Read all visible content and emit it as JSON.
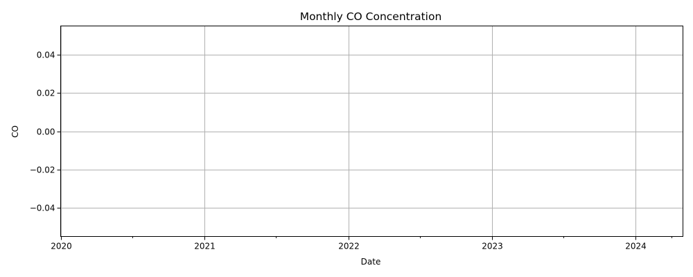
{
  "chart_data": {
    "type": "line",
    "title": "Monthly CO Concentration",
    "xlabel": "Date",
    "ylabel": "CO",
    "xlim": [
      "2020-01-01",
      "2024-04-30"
    ],
    "ylim": [
      -0.055,
      0.055
    ],
    "x_major_ticks": [
      "2020",
      "2021",
      "2022",
      "2023",
      "2024"
    ],
    "x_minor_ticks": [
      "2020-07",
      "2021-07",
      "2022-07",
      "2023-07",
      "2024-04"
    ],
    "y_ticks": [
      0.04,
      0.02,
      0.0,
      -0.02,
      -0.04
    ],
    "y_tick_labels": [
      "0.04",
      "0.02",
      "0.00",
      "−0.02",
      "−0.04"
    ],
    "grid": true,
    "series": [
      {
        "name": "CO",
        "color": "#1f77b4",
        "x": [],
        "values": []
      }
    ]
  }
}
